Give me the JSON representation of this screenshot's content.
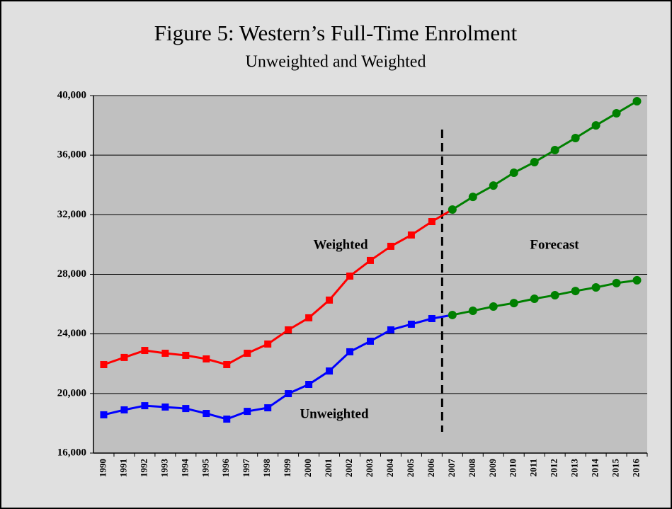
{
  "chart_data": {
    "type": "line",
    "title": "Figure 5:  Western’s Full-Time Enrolment",
    "subtitle": "Unweighted and Weighted",
    "categories": [
      "1990",
      "1991",
      "1992",
      "1993",
      "1994",
      "1995",
      "1996",
      "1997",
      "1998",
      "1999",
      "2000",
      "2001",
      "2002",
      "2003",
      "2004",
      "2005",
      "2006",
      "2007",
      "2008",
      "2009",
      "2010",
      "2011",
      "2012",
      "2013",
      "2014",
      "2015",
      "2016"
    ],
    "series": [
      {
        "name": "Weighted",
        "color": "#ff0000",
        "values": [
          21940,
          22420,
          22890,
          22700,
          22560,
          22320,
          21940,
          22700,
          23320,
          24270,
          25080,
          26270,
          27880,
          28930,
          29880,
          30640,
          31540,
          32350,
          33200,
          33960,
          34820,
          35530,
          36340,
          37150,
          38000,
          38810,
          39620
        ]
      },
      {
        "name": "Unweighted",
        "color": "#0000ff",
        "values": [
          18570,
          18900,
          19180,
          19090,
          18990,
          18660,
          18280,
          18800,
          19040,
          19990,
          20610,
          21510,
          22800,
          23510,
          24270,
          24650,
          25030,
          25270,
          25550,
          25840,
          26070,
          26360,
          26600,
          26880,
          27120,
          27410,
          27600
        ]
      }
    ],
    "forecast": {
      "label": "Forecast",
      "color": "#008000",
      "from": "2007"
    },
    "ylim": [
      16000,
      40000
    ],
    "yticks": [
      {
        "value": 16000,
        "label": "16,000"
      },
      {
        "value": 20000,
        "label": "20,000"
      },
      {
        "value": 24000,
        "label": "24,000"
      },
      {
        "value": 28000,
        "label": "28,000"
      },
      {
        "value": 32000,
        "label": "32,000"
      },
      {
        "value": 36000,
        "label": "36,000"
      },
      {
        "value": 40000,
        "label": "40,000"
      }
    ],
    "grid": true
  }
}
